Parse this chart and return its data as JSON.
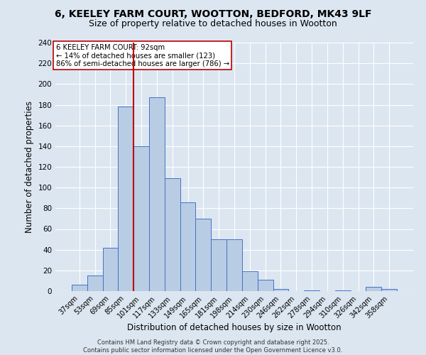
{
  "title1": "6, KEELEY FARM COURT, WOOTTON, BEDFORD, MK43 9LF",
  "title2": "Size of property relative to detached houses in Wootton",
  "bar_labels": [
    "37sqm",
    "53sqm",
    "69sqm",
    "85sqm",
    "101sqm",
    "117sqm",
    "133sqm",
    "149sqm",
    "165sqm",
    "181sqm",
    "198sqm",
    "214sqm",
    "230sqm",
    "246sqm",
    "262sqm",
    "278sqm",
    "294sqm",
    "310sqm",
    "326sqm",
    "342sqm",
    "358sqm"
  ],
  "bar_values": [
    6,
    15,
    42,
    178,
    140,
    187,
    109,
    86,
    70,
    50,
    50,
    19,
    11,
    2,
    0,
    1,
    0,
    1,
    0,
    4,
    2
  ],
  "bar_color": "#b8cce4",
  "bar_edge_color": "#4472c4",
  "vline_x": 3.5,
  "vline_color": "#c00000",
  "xlabel": "Distribution of detached houses by size in Wootton",
  "ylabel": "Number of detached properties",
  "ylim": [
    0,
    240
  ],
  "yticks": [
    0,
    20,
    40,
    60,
    80,
    100,
    120,
    140,
    160,
    180,
    200,
    220,
    240
  ],
  "annotation_title": "6 KEELEY FARM COURT: 92sqm",
  "annotation_line1": "← 14% of detached houses are smaller (123)",
  "annotation_line2": "86% of semi-detached houses are larger (786) →",
  "annotation_box_color": "#ffffff",
  "annotation_box_edge": "#c00000",
  "footnote1": "Contains HM Land Registry data © Crown copyright and database right 2025.",
  "footnote2": "Contains public sector information licensed under the Open Government Licence v3.0.",
  "background_color": "#dce6f1",
  "plot_bg_color": "#dce6f1",
  "grid_color": "#ffffff",
  "title1_fontsize": 10,
  "title2_fontsize": 9
}
